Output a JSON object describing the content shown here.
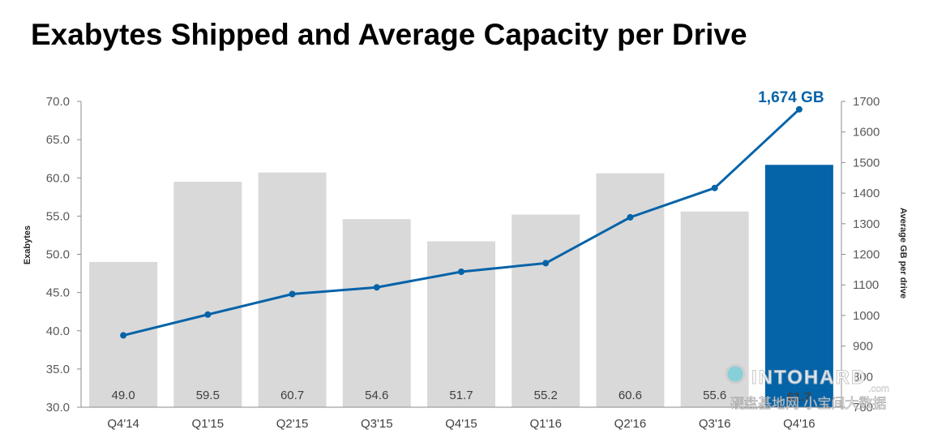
{
  "title": "Exabytes Shipped and Average Capacity per Drive",
  "colors": {
    "bar": "#d9d9d9",
    "bar_highlight": "#0563a8",
    "line": "#0563a8",
    "callout": "#0563a8"
  },
  "watermark": {
    "text": "INTOHARD",
    "suffix": ".com",
    "subtitle": "硬盘基地网 小宝间大数据"
  },
  "chart_data": {
    "type": "bar+line",
    "categories": [
      "Q4'14",
      "Q1'15",
      "Q2'15",
      "Q3'15",
      "Q4'15",
      "Q1'16",
      "Q2'16",
      "Q3'16",
      "Q4'16"
    ],
    "series": [
      {
        "type": "bar",
        "axis": "left",
        "values": [
          49.0,
          59.5,
          60.7,
          54.6,
          51.7,
          55.2,
          60.6,
          55.6,
          61.7
        ],
        "labels": [
          "49.0",
          "59.5",
          "60.7",
          "54.6",
          "51.7",
          "55.2",
          "60.6",
          "55.6",
          "61.7"
        ],
        "highlight_index": 8
      },
      {
        "type": "line",
        "axis": "right",
        "values": [
          935,
          1003,
          1070,
          1092,
          1143,
          1171,
          1321,
          1417,
          1674
        ],
        "callout": "1,674 GB"
      }
    ],
    "ylabel": "Exabytes",
    "y2label": "Average GB per drive",
    "ylim": [
      30,
      70
    ],
    "y2lim": [
      700,
      1700
    ],
    "yticks": [
      "70.0",
      "65.0",
      "60.0",
      "55.0",
      "50.0",
      "45.0",
      "40.0",
      "35.0",
      "30.0"
    ],
    "y2ticks": [
      "1700",
      "1600",
      "1500",
      "1400",
      "1300",
      "1200",
      "1100",
      "1000",
      "900",
      "800",
      "700"
    ],
    "grid": false,
    "legend": "none"
  }
}
